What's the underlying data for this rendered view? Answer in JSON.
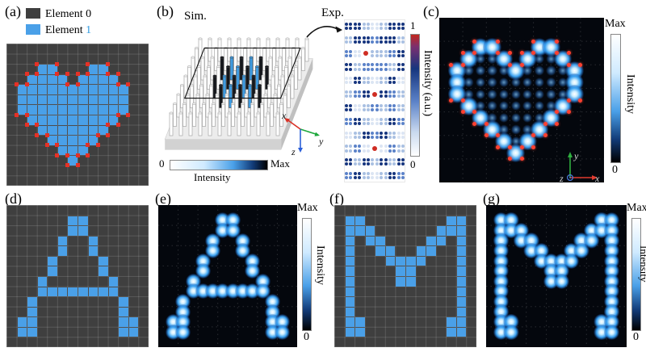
{
  "figure": {
    "panels": {
      "a": {
        "label": "(a)"
      },
      "b": {
        "label": "(b)",
        "sim": "Sim.",
        "exp": "Exp.",
        "hbar": {
          "min": "0",
          "max": "Max",
          "title": "Intensity"
        },
        "expbar": {
          "max": "1",
          "min": "0",
          "title": "Intensity (a.u.)"
        },
        "axes": {
          "x": "x",
          "y": "y",
          "z": "z"
        }
      },
      "c": {
        "label": "(c)",
        "bar": {
          "max": "Max",
          "min": "0",
          "title": "Intensity"
        },
        "axes": {
          "x": "x",
          "y": "y",
          "z": "z"
        }
      },
      "d": {
        "label": "(d)"
      },
      "e": {
        "label": "(e)",
        "bar": {
          "max": "Max",
          "min": "0",
          "title": "Intensity"
        }
      },
      "f": {
        "label": "(f)"
      },
      "g": {
        "label": "(g)",
        "bar": {
          "max": "Max",
          "min": "0",
          "title": "Intensity"
        }
      }
    },
    "legend": [
      {
        "name": "Element ",
        "index": "0"
      },
      {
        "name": "Element ",
        "index": "1"
      }
    ],
    "grids": {
      "heart": [
        "..............",
        "..............",
        "...XX...XX....",
        "..XXXX.XXXX...",
        ".XXXXXXXXXXX..",
        ".XXXXXXXXXXX..",
        ".XXXXXXXXXXX..",
        "..XXXXXXXXX...",
        "...XXXXXXX....",
        "....XXXXX.....",
        ".....XXX......",
        "......X.......",
        "..............",
        ".............."
      ],
      "letterA": [
        "..............",
        "......XX......",
        "......XX......",
        ".....X..X.....",
        ".....X..X.....",
        "....X....X....",
        "....X....X....",
        "...X......X...",
        "...XXXXXXXX...",
        "..X........X..",
        "..X........X..",
        ".XX........XX.",
        ".XX........XX.",
        ".............."
      ],
      "letterM": [
        "..............",
        ".XX........XX.",
        ".XXX......XXX.",
        ".X.XX....XX.X.",
        ".X..XX..XX..X.",
        ".X...XXXX...X.",
        ".X....XX....X.",
        ".X....XX....X.",
        ".X..........X.",
        ".X..........X.",
        ".X..........X.",
        ".XX........XX.",
        ".XX........XX.",
        ".............."
      ]
    },
    "heart_markers": [
      [
        3,
        2
      ],
      [
        5,
        2
      ],
      [
        5,
        3
      ],
      [
        6,
        3
      ],
      [
        6,
        4
      ],
      [
        7,
        4
      ],
      [
        7,
        3
      ],
      [
        8,
        3
      ],
      [
        8,
        2
      ],
      [
        10,
        2
      ],
      [
        10,
        3
      ],
      [
        11,
        3
      ],
      [
        11,
        4
      ],
      [
        12,
        4
      ],
      [
        12,
        7
      ],
      [
        11,
        7
      ],
      [
        11,
        8
      ],
      [
        10,
        8
      ],
      [
        10,
        9
      ],
      [
        9,
        9
      ],
      [
        9,
        10
      ],
      [
        8,
        10
      ],
      [
        8,
        11
      ],
      [
        7,
        11
      ],
      [
        7,
        12
      ],
      [
        6,
        12
      ],
      [
        6,
        11
      ],
      [
        5,
        11
      ],
      [
        5,
        10
      ],
      [
        4,
        10
      ],
      [
        4,
        9
      ],
      [
        3,
        9
      ],
      [
        3,
        8
      ],
      [
        2,
        8
      ],
      [
        2,
        7
      ],
      [
        1,
        7
      ],
      [
        1,
        4
      ],
      [
        2,
        4
      ],
      [
        2,
        3
      ],
      [
        3,
        3
      ]
    ],
    "exp_pattern": [
      "DDl.lDD",
      "lDDmDDl",
      "m.rllmD",
      "DlmmmlD",
      ".Dl.lD.",
      "lmDrDml",
      "D.lmlml",
      "mDl.lDm",
      ".lDmDl.",
      "lm.r.ml",
      "DlDlDlD",
      "mDl.lDm"
    ],
    "pillars": {
      "dark": [
        [
          3,
          2
        ],
        [
          5,
          2
        ],
        [
          7,
          2
        ],
        [
          4,
          3
        ],
        [
          6,
          3
        ],
        [
          8,
          3
        ],
        [
          3,
          4
        ],
        [
          5,
          4
        ],
        [
          7,
          4
        ],
        [
          4,
          5
        ],
        [
          6,
          5
        ],
        [
          8,
          5
        ]
      ],
      "blue": [
        [
          4,
          2
        ],
        [
          6,
          2
        ],
        [
          5,
          3
        ],
        [
          7,
          3
        ],
        [
          4,
          4
        ],
        [
          6,
          4
        ],
        [
          5,
          5
        ],
        [
          7,
          5
        ]
      ]
    },
    "colors": {
      "element0": "#3f3f3f",
      "element1": "#4aa0e8",
      "red_marker": "#e53126",
      "axis_x": "#d93025",
      "axis_y": "#1ea83c",
      "axis_z": "#2b5fd9",
      "exp": {
        "D": "#16357e",
        "m": "#5b82c8",
        "l": "#a9c0e2",
        ".": "#dbe5f3",
        "r": "#cf2d23"
      }
    }
  }
}
